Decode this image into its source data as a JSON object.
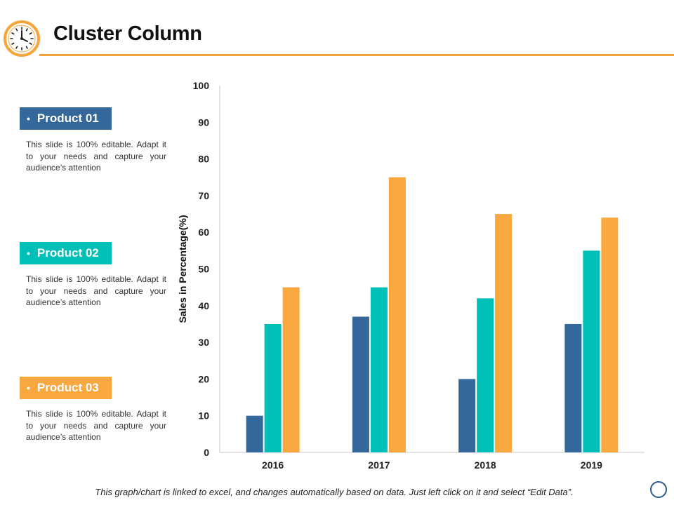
{
  "header": {
    "title": "Cluster Column",
    "icon": "clock-icon",
    "accent_color": "#F6A53C"
  },
  "products": [
    {
      "label": "Product 01",
      "color": "#34679A",
      "description": "This slide is 100% editable. Adapt it to your needs and capture your audience’s attention"
    },
    {
      "label": "Product 02",
      "color": "#00BFB6",
      "description": "This slide is 100% editable. Adapt it to your needs and capture your audience’s attention"
    },
    {
      "label": "Product 03",
      "color": "#F8A83F",
      "description": "This slide is 100% editable. Adapt it to your needs and capture your audience’s attention"
    }
  ],
  "chart_data": {
    "type": "bar",
    "categories": [
      "2016",
      "2017",
      "2018",
      "2019"
    ],
    "series": [
      {
        "name": "Product 01",
        "values": [
          10,
          37,
          20,
          35
        ],
        "color": "#34679A"
      },
      {
        "name": "Product 02",
        "values": [
          35,
          45,
          42,
          55
        ],
        "color": "#00BFB6"
      },
      {
        "name": "Product 03",
        "values": [
          45,
          75,
          65,
          64
        ],
        "color": "#F8A83F"
      }
    ],
    "title": "",
    "xlabel": "",
    "ylabel": "Sales in Percentage(%)",
    "ylim": [
      0,
      100
    ],
    "yticks": [
      0,
      10,
      20,
      30,
      40,
      50,
      60,
      70,
      80,
      90,
      100
    ],
    "grid": false,
    "legend": "left"
  },
  "footer": {
    "note": "This graph/chart is linked to excel, and changes automatically based on data. Just left click on it and select “Edit Data”.",
    "nav_icon": "circle-icon"
  }
}
